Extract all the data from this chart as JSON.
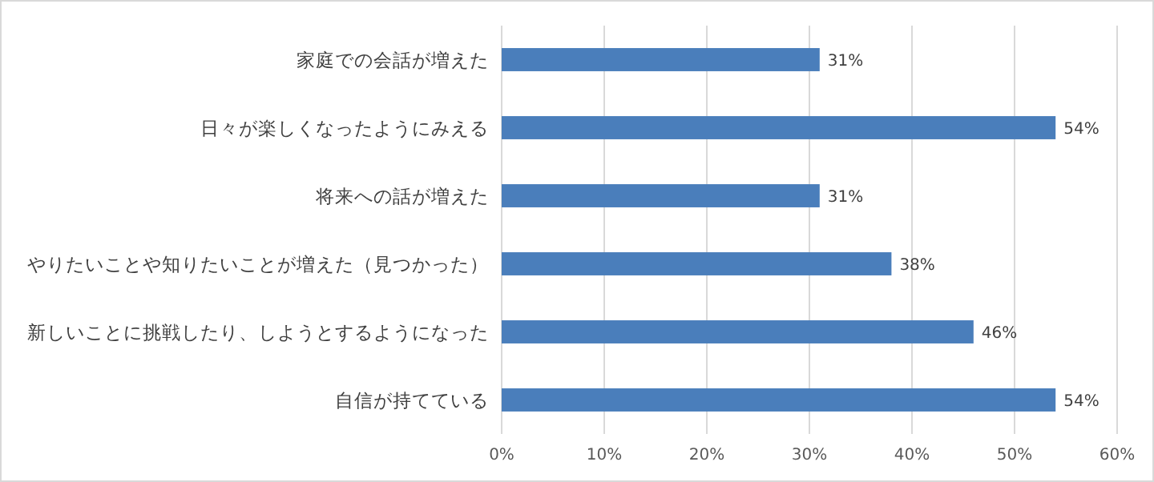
{
  "chart_data": {
    "type": "bar",
    "orientation": "horizontal",
    "categories": [
      "家庭での会話が増えた",
      "日々が楽しくなったようにみえる",
      "将来への話が増えた",
      "やりたいことや知りたいことが増えた（見つかった）",
      "新しいことに挑戦したり、しようとするようになった",
      "自信が持てている"
    ],
    "values": [
      31,
      54,
      31,
      38,
      46,
      54
    ],
    "value_labels": [
      "31%",
      "54%",
      "31%",
      "38%",
      "46%",
      "54%"
    ],
    "color": "#4a7ebb",
    "xlim": [
      0,
      60
    ],
    "xticks": [
      {
        "value": 0,
        "label": "0%"
      },
      {
        "value": 10,
        "label": "10%"
      },
      {
        "value": 20,
        "label": "20%"
      },
      {
        "value": 30,
        "label": "30%"
      },
      {
        "value": 40,
        "label": "40%"
      },
      {
        "value": 50,
        "label": "50%"
      },
      {
        "value": 60,
        "label": "60%"
      }
    ],
    "grid": "x"
  }
}
